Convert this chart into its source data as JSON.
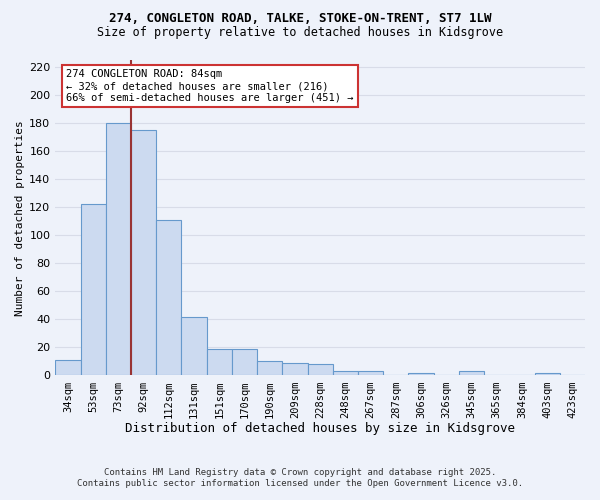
{
  "title_line1": "274, CONGLETON ROAD, TALKE, STOKE-ON-TRENT, ST7 1LW",
  "title_line2": "Size of property relative to detached houses in Kidsgrove",
  "xlabel": "Distribution of detached houses by size in Kidsgrove",
  "ylabel": "Number of detached properties",
  "categories": [
    "34sqm",
    "53sqm",
    "73sqm",
    "92sqm",
    "112sqm",
    "131sqm",
    "151sqm",
    "170sqm",
    "190sqm",
    "209sqm",
    "228sqm",
    "248sqm",
    "267sqm",
    "287sqm",
    "306sqm",
    "326sqm",
    "345sqm",
    "365sqm",
    "384sqm",
    "403sqm",
    "423sqm"
  ],
  "values": [
    11,
    122,
    180,
    175,
    111,
    42,
    19,
    19,
    10,
    9,
    8,
    3,
    3,
    0,
    2,
    0,
    3,
    0,
    0,
    2,
    0
  ],
  "bar_color": "#ccdaf0",
  "bar_edge_color": "#6699cc",
  "background_color": "#eef2fa",
  "grid_color": "#d8dce8",
  "vline_color": "#993333",
  "annotation_text": "274 CONGLETON ROAD: 84sqm\n← 32% of detached houses are smaller (216)\n66% of semi-detached houses are larger (451) →",
  "annotation_box_color": "#ffffff",
  "annotation_box_edge": "#cc3333",
  "ylim": [
    0,
    225
  ],
  "yticks": [
    0,
    20,
    40,
    60,
    80,
    100,
    120,
    140,
    160,
    180,
    200,
    220
  ],
  "footer_line1": "Contains HM Land Registry data © Crown copyright and database right 2025.",
  "footer_line2": "Contains public sector information licensed under the Open Government Licence v3.0."
}
